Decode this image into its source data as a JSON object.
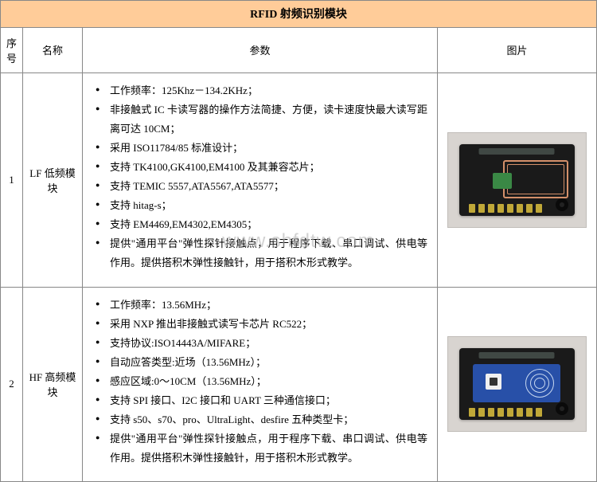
{
  "title": "RFID 射频识别模块",
  "watermark": "www.shfdtw.com",
  "headers": {
    "num": "序号",
    "name": "名称",
    "params": "参数",
    "image": "图片"
  },
  "rows": [
    {
      "num": "1",
      "name": "LF 低频模块",
      "params": [
        "工作频率：125Khz－134.2KHz；",
        "非接触式 IC 卡读写器的操作方法简捷、方便，读卡速度快最大读写距离可达 10CM；",
        "采用 ISO11784/85 标准设计；",
        "支持 TK4100,GK4100,EM4100 及其兼容芯片；",
        "支持 TEMIC 5557,ATA5567,ATA5577；",
        "支持 hitag-s；",
        "支持 EM4469,EM4302,EM4305；",
        "提供\"通用平台\"弹性探针接触点，用于程序下载、串口调试、供电等作用。提供搭积木弹性接触针，用于搭积木形式教学。"
      ],
      "image_label": "LF 低频读卡器"
    },
    {
      "num": "2",
      "name": "HF 高频模块",
      "params": [
        "工作频率：13.56MHz；",
        "采用 NXP 推出非接触式读写卡芯片 RC522；",
        "支持协议:ISO14443A/MIFARE；",
        "自动应答类型:近场（13.56MHz）；",
        "感应区域:0～10CM（13.56MHz）；",
        "支持 SPI 接口、I2C 接口和 UART 三种通信接口；",
        "支持 s50、s70、pro、UltraLight、desfire 五种类型卡；",
        "提供\"通用平台\"弹性探针接触点，用于程序下载、串口调试、供电等作用。提供搭积木弹性接触针，用于搭积木形式教学。"
      ],
      "image_label": "HF 高频读卡器"
    }
  ],
  "colors": {
    "title_bg": "#ffcc99",
    "border": "#888888",
    "background": "#ffffff",
    "text": "#000000",
    "watermark": "rgba(180,180,180,0.6)",
    "pcb_black": "#1a1a1a",
    "pcb_lf_chip": "#3a8845",
    "pcb_antenna": "#d4906a",
    "pcb_hf_board": "#2850a8",
    "pcb_hf_chip": "#f0f0f0",
    "pcb_pin": "#c0a838",
    "img_bg": "#d8d4d0"
  }
}
